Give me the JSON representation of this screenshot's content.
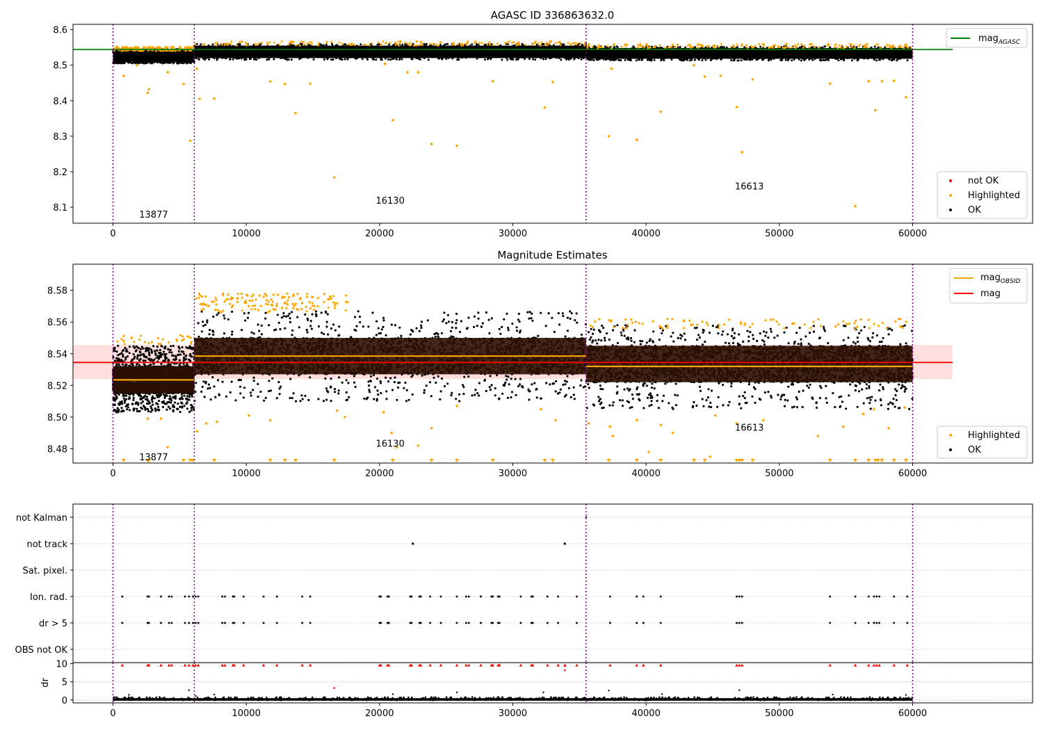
{
  "chart_data": [
    {
      "type": "scatter",
      "title": "AGASC ID 336863632.0",
      "xlabel": "",
      "ylabel": "",
      "xlim": [
        -3000,
        69000
      ],
      "ylim": [
        8.055,
        8.615
      ],
      "xticks": [
        0,
        10000,
        20000,
        30000,
        40000,
        50000,
        60000
      ],
      "yticks": [
        8.1,
        8.2,
        8.3,
        8.4,
        8.5,
        8.6
      ],
      "ytick_labels": [
        "8.1",
        "8.2",
        "8.3",
        "8.4",
        "8.5",
        "8.6"
      ],
      "grid": false,
      "obsid_boundaries": [
        0,
        6100,
        35500,
        60000
      ],
      "obsid_labels": [
        {
          "text": "13877",
          "x": 3050,
          "y": 8.08
        },
        {
          "text": "16130",
          "x": 20800,
          "y": 8.12
        },
        {
          "text": "16613",
          "x": 47750,
          "y": 8.16
        }
      ],
      "lines": [
        {
          "name": "mag_AGASC",
          "name_main": "mag",
          "name_sub": "AGASC",
          "y": 8.544,
          "x_range": [
            -3000,
            63000
          ],
          "color": "#008000"
        }
      ],
      "bands": [
        {
          "x_range": [
            0,
            6100
          ],
          "y_range": [
            8.51,
            8.54
          ]
        },
        {
          "x_range": [
            6100,
            35500
          ],
          "y_range": [
            8.52,
            8.555
          ]
        },
        {
          "x_range": [
            35500,
            60000
          ],
          "y_range": [
            8.518,
            8.548
          ]
        }
      ],
      "highlighted_points": {
        "x": [
          800,
          1800,
          2600,
          2700,
          4100,
          5300,
          5800,
          6300,
          6500,
          7600,
          11800,
          12900,
          13700,
          14800,
          16600,
          20400,
          21000,
          22100,
          22900,
          23900,
          25800,
          28500,
          32400,
          33000,
          37200,
          37400,
          39300,
          41100,
          43600,
          44400,
          45600,
          46800,
          47200,
          48000,
          57200,
          56700,
          57700,
          58600,
          59500,
          55700,
          53800
        ],
        "y": [
          8.47,
          8.5,
          8.422,
          8.432,
          8.48,
          8.447,
          8.287,
          8.49,
          8.405,
          8.406,
          8.454,
          8.447,
          8.365,
          8.448,
          8.184,
          8.504,
          8.345,
          8.48,
          8.48,
          8.278,
          8.273,
          8.455,
          8.381,
          8.453,
          8.3,
          8.49,
          8.29,
          8.369,
          8.5,
          8.468,
          8.47,
          8.382,
          8.255,
          8.46,
          8.373,
          8.455,
          8.455,
          8.456,
          8.41,
          8.103,
          8.448
        ]
      },
      "legend": {
        "position": "lower-right",
        "entries": [
          {
            "label": "not OK",
            "color": "#ff0000"
          },
          {
            "label": "Highlighted",
            "color": "#ffa500"
          },
          {
            "label": "OK",
            "color": "#000000"
          }
        ]
      },
      "legend_lines": {
        "position": "upper-right"
      }
    },
    {
      "type": "scatter",
      "title": "Magnitude Estimates",
      "xlabel": "",
      "ylabel": "",
      "xlim": [
        -3000,
        69000
      ],
      "ylim": [
        8.471,
        8.5965
      ],
      "xticks": [
        0,
        10000,
        20000,
        30000,
        40000,
        50000,
        60000
      ],
      "yticks": [
        8.48,
        8.5,
        8.52,
        8.54,
        8.56,
        8.58
      ],
      "ytick_labels": [
        "8.48",
        "8.50",
        "8.52",
        "8.54",
        "8.56",
        "8.58"
      ],
      "grid": false,
      "obsid_boundaries": [
        0,
        6100,
        35500,
        60000
      ],
      "obsid_labels": [
        {
          "text": "13877",
          "x": 3050,
          "y": 8.475
        },
        {
          "text": "16130",
          "x": 20800,
          "y": 8.4835
        },
        {
          "text": "16613",
          "x": 47750,
          "y": 8.4935
        }
      ],
      "mag_band": {
        "x_range": [
          -3000,
          63000
        ],
        "y_range": [
          8.524,
          8.5455
        ],
        "color": "#ffdede"
      },
      "lines": [
        {
          "name": "mag_OBSID",
          "name_main": "mag",
          "name_sub": "OBSID",
          "color": "#ffa500",
          "segments": [
            {
              "x_range": [
                0,
                6100
              ],
              "y": 8.5235
            },
            {
              "x_range": [
                6100,
                35500
              ],
              "y": 8.5385
            },
            {
              "x_range": [
                35500,
                60000
              ],
              "y": 8.532
            }
          ]
        },
        {
          "name": "mag",
          "color": "#ff0000",
          "y": 8.5345,
          "x_range": [
            -3000,
            63000
          ]
        }
      ],
      "point_clouds": [
        {
          "x_range": [
            0,
            6100
          ],
          "lo": 8.503,
          "hi": 8.545,
          "core": [
            8.515,
            8.532
          ]
        },
        {
          "x_range": [
            6100,
            35500
          ],
          "lo": 8.51,
          "hi": 8.567,
          "core": [
            8.527,
            8.55
          ]
        },
        {
          "x_range": [
            35500,
            60000
          ],
          "lo": 8.505,
          "hi": 8.558,
          "core": [
            8.522,
            8.545
          ]
        }
      ],
      "highlighted_points": {
        "x": [
          800,
          1400,
          2600,
          3600,
          4100,
          5300,
          6300,
          7000,
          7800,
          10200,
          11800,
          14200,
          16800,
          17400,
          20300,
          20900,
          21300,
          22900,
          23900,
          25800,
          32100,
          33200,
          35700,
          37300,
          37500,
          39300,
          40200,
          41100,
          42000,
          44800,
          45200,
          46800,
          48800,
          51000,
          52900,
          54800,
          56300,
          57100,
          58200,
          59400
        ],
        "y": [
          8.548,
          8.55,
          8.499,
          8.499,
          8.481,
          8.549,
          8.491,
          8.496,
          8.497,
          8.501,
          8.498,
          8.572,
          8.504,
          8.5,
          8.503,
          8.49,
          8.481,
          8.482,
          8.493,
          8.507,
          8.505,
          8.498,
          8.496,
          8.494,
          8.488,
          8.498,
          8.478,
          8.495,
          8.49,
          8.475,
          8.501,
          8.496,
          8.498,
          8.559,
          8.488,
          8.494,
          8.502,
          8.505,
          8.493,
          8.506
        ]
      },
      "clipped_markers_x": [
        800,
        2600,
        2700,
        5300,
        5800,
        6000,
        7600,
        11800,
        12900,
        13700,
        16600,
        21000,
        23900,
        25800,
        28500,
        32400,
        33000,
        37200,
        39300,
        41100,
        43600,
        44400,
        46800,
        47000,
        47200,
        48000,
        53800,
        55700,
        56700,
        57200,
        57400,
        57700,
        58600,
        59500
      ],
      "legend": {
        "position": "lower-right",
        "entries": [
          {
            "label": "Highlighted",
            "color": "#ffa500"
          },
          {
            "label": "OK",
            "color": "#000000"
          }
        ]
      },
      "legend_lines": {
        "position": "upper-right"
      }
    },
    {
      "type": "scatter",
      "title": "",
      "xlabel": "",
      "ylabel": "",
      "xlim": [
        -3000,
        69000
      ],
      "ylim": [
        -0.5,
        5.5
      ],
      "categories": [
        "OBS not OK",
        "dr > 5",
        "Ion. rad.",
        "Sat. pixel.",
        "not track",
        "not Kalman"
      ],
      "flag_x": [
        700,
        2600,
        2700,
        3600,
        4200,
        4400,
        5400,
        5700,
        6000,
        6200,
        6400,
        8200,
        8400,
        9000,
        9100,
        9800,
        11300,
        12300,
        14200,
        14800,
        20000,
        20100,
        20600,
        20700,
        22300,
        22400,
        23000,
        23100,
        23800,
        24600,
        25800,
        26500,
        26700,
        27600,
        28400,
        28500,
        28900,
        29000,
        30600,
        31400,
        31500,
        32600,
        33400,
        34800,
        37300,
        39300,
        39800,
        41100,
        46800,
        47000,
        47200,
        53800,
        55700,
        56700,
        57100,
        57300,
        57500,
        58600,
        59600
      ],
      "not_track_x": [
        22500,
        33900
      ],
      "not_kalman_x": [
        35500
      ],
      "obsid_boundaries": [
        0,
        6100,
        35500,
        60000
      ]
    },
    {
      "type": "scatter",
      "title": "",
      "xlabel": "",
      "ylabel": "dr",
      "xlim": [
        -3000,
        69000
      ],
      "ylim": [
        -0.8,
        10.3
      ],
      "xticks": [
        0,
        10000,
        20000,
        30000,
        40000,
        50000,
        60000
      ],
      "yticks": [
        0,
        5,
        10
      ],
      "ytick_labels": [
        "0",
        "5",
        "10"
      ],
      "grid": true,
      "clipped_red_x": [
        700,
        2600,
        2700,
        3600,
        4200,
        4400,
        5400,
        5700,
        6000,
        6200,
        6400,
        8200,
        8400,
        9000,
        9100,
        9800,
        11300,
        12300,
        14200,
        14800,
        20000,
        20100,
        20600,
        20700,
        22300,
        22400,
        23000,
        23100,
        23800,
        24600,
        25800,
        26500,
        26700,
        27600,
        28400,
        28500,
        28900,
        29000,
        30600,
        31400,
        31500,
        32600,
        33400,
        33900,
        34800,
        37300,
        39300,
        39800,
        41100,
        46800,
        47000,
        47200,
        53800,
        55700,
        56700,
        57100,
        57300,
        57500,
        58600,
        59600
      ],
      "red_points": {
        "x": [
          16600,
          33900,
          33950
        ],
        "y": [
          3.3,
          8.2,
          9.4
        ]
      },
      "black_outliers": {
        "x": [
          1200,
          5700,
          6200,
          7600,
          21000,
          25800,
          32300,
          37200,
          41200,
          47000,
          54000,
          59500
        ],
        "y": [
          1.4,
          2.7,
          1.1,
          1.5,
          1.6,
          2.1,
          2.1,
          2.6,
          1.6,
          2.7,
          1.5,
          1.4
        ]
      },
      "obsid_boundaries": [
        0,
        6100,
        35500,
        60000
      ]
    }
  ]
}
